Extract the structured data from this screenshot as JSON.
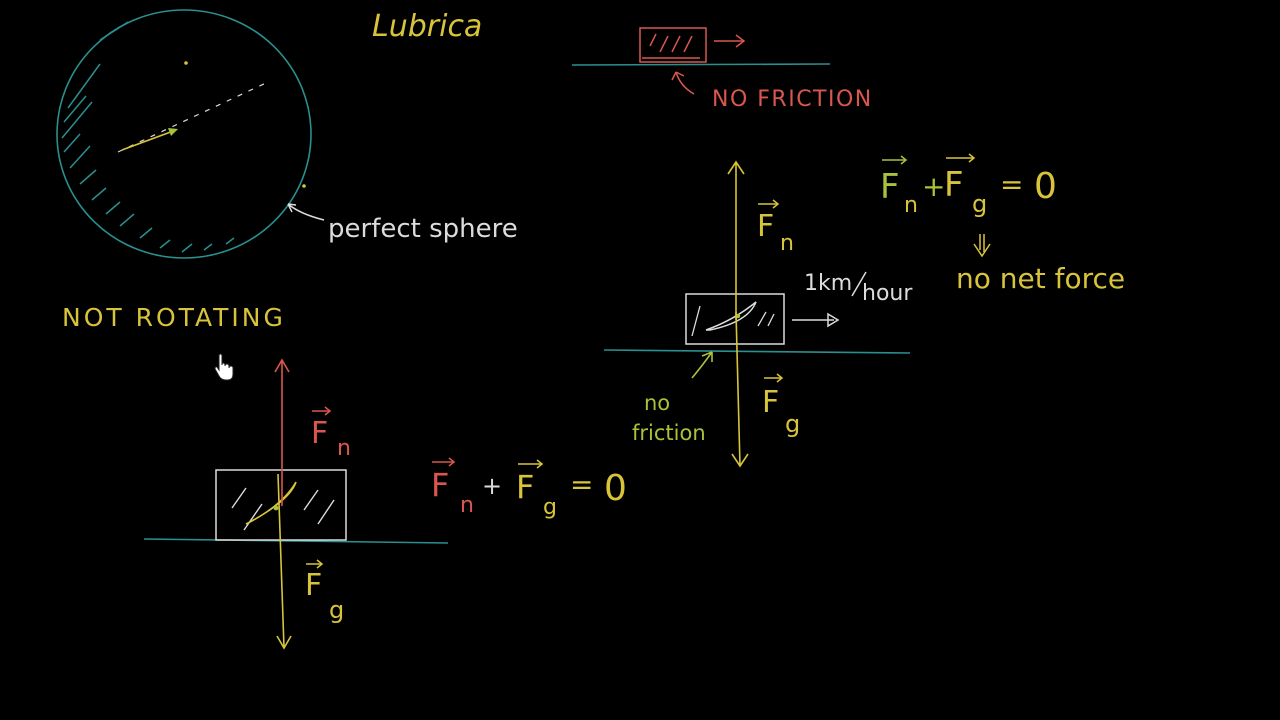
{
  "colors": {
    "background": "#000000",
    "ground": "#2a8f8f",
    "yellow": "#d8c43a",
    "red": "#d9574f",
    "green": "#a8c23a",
    "white": "#dcdcdc",
    "cursor": "#ffffff"
  },
  "top_left": {
    "lubricant": "Lubrica",
    "perfect_sphere": "perfect sphere",
    "not_rotating": "NOT ROTATING"
  },
  "top_middle": {
    "no_friction": "NO FRICTION"
  },
  "left_diagram": {
    "fn_letter": "F",
    "fn_sub": "n",
    "fg_letter": "F",
    "fg_sub": "g",
    "eq_f1": "F",
    "eq_sub1": "n",
    "eq_plus": "+",
    "eq_f2": "F",
    "eq_sub2": "g",
    "eq_equals": "=",
    "eq_zero": "0"
  },
  "right_diagram": {
    "fn_letter": "F",
    "fn_sub": "n",
    "fg_letter": "F",
    "fg_sub": "g",
    "speed_num": "1km",
    "speed_den": "hour",
    "no_friction_1": "no",
    "no_friction_2": "friction",
    "eq_f1": "F",
    "eq_sub1": "n",
    "eq_plus": "+",
    "eq_f2": "F",
    "eq_sub2": "g",
    "eq_equals": "=",
    "eq_zero": "0",
    "no_net_force": "no net force"
  },
  "icons": {
    "cursor": "hand-pointer-icon"
  }
}
